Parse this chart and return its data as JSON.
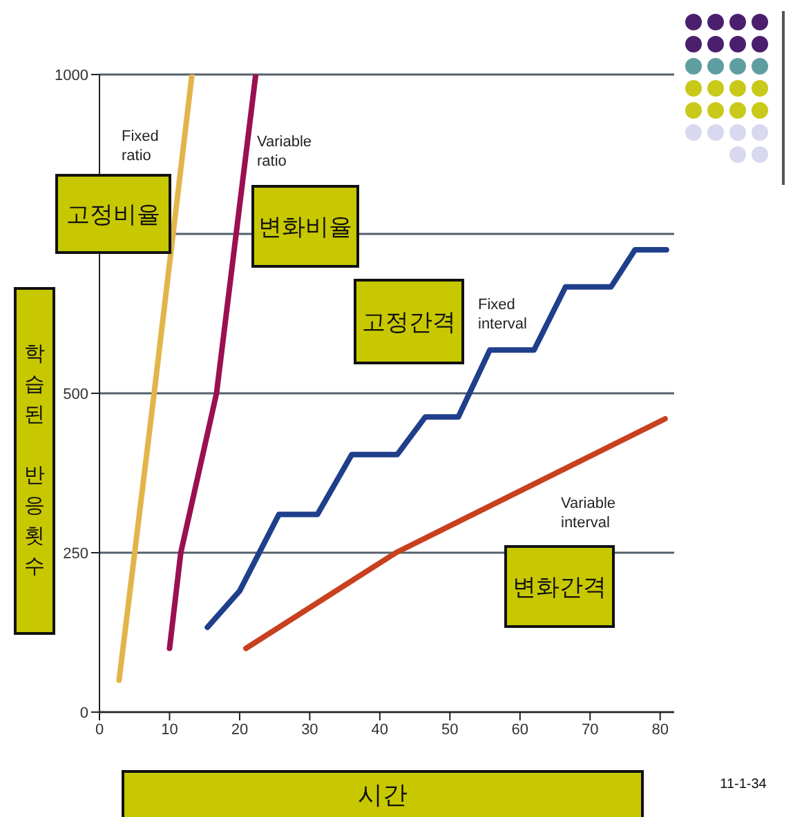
{
  "chart_data": {
    "type": "line",
    "xlabel": "시간",
    "ylabel": "학습된 반응횟수",
    "xlim": [
      0,
      82
    ],
    "xticks": [
      0,
      10,
      20,
      30,
      40,
      50,
      60,
      70,
      80
    ],
    "ylim": [
      0,
      1000
    ],
    "yticks": [
      0,
      250,
      500,
      {
        "value": 750,
        "label": null
      },
      1000
    ],
    "grid": "y",
    "marker": "none",
    "line_style": "solid",
    "series": [
      {
        "name": "Fixed ratio",
        "color": "#e2b54a",
        "x": [
          2.8,
          7.8,
          13.2
        ],
        "values": [
          50,
          500,
          1000
        ]
      },
      {
        "name": "Variable ratio",
        "color": "#9b1050",
        "x": [
          10,
          11.6,
          16.7,
          22.3
        ],
        "values": [
          100,
          250,
          500,
          1000
        ]
      },
      {
        "name": "Fixed interval",
        "color": "#1f3f8a",
        "x": [
          15.4,
          20,
          25.6,
          31.1,
          36,
          42.5,
          46.5,
          51.2,
          55.7,
          62,
          66.5,
          73,
          76.4,
          80.9
        ],
        "values": [
          133,
          190,
          310,
          310,
          404,
          404,
          463,
          463,
          568,
          568,
          667,
          667,
          725,
          725
        ]
      },
      {
        "name": "Variable interval",
        "color": "#c8401e",
        "x": [
          20.9,
          42.3,
          80.7
        ],
        "values": [
          100,
          250,
          460
        ]
      }
    ],
    "annotations": [
      "고정비율",
      "변화비율",
      "고정간격",
      "변화간격",
      "11-1-34"
    ]
  }
}
